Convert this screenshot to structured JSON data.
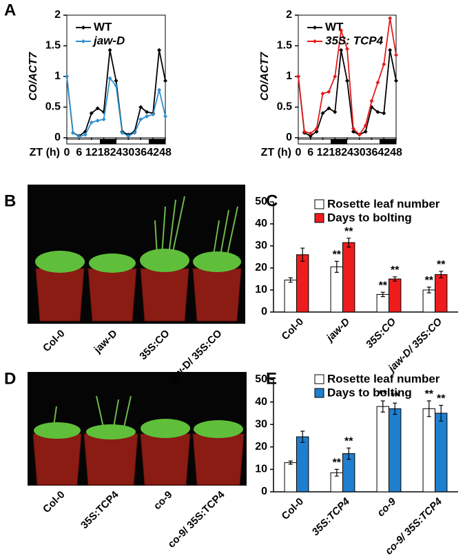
{
  "panels": [
    "A",
    "B",
    "C",
    "D",
    "E"
  ],
  "photo_b": {
    "labels": [
      "Col-0",
      "jaw-D",
      "35S:CO",
      "jaw-D/ 35S:CO"
    ]
  },
  "photo_d": {
    "labels": [
      "Col-0",
      "35S:TCP4",
      "co-9",
      "co-9/ 35S:TCP4"
    ]
  },
  "chart_data": [
    {
      "type": "line",
      "xlabel": "ZT (h)",
      "ylabel": "CO/ACT7",
      "x": [
        0,
        3,
        6,
        9,
        12,
        15,
        18,
        21,
        24,
        27,
        30,
        33,
        36,
        39,
        42,
        45,
        48
      ],
      "xlim": [
        0,
        48
      ],
      "xticks": [
        0,
        6,
        12,
        18,
        24,
        30,
        36,
        42,
        48
      ],
      "ylim": [
        0,
        2
      ],
      "yticks": [
        0,
        0.5,
        1,
        1.5,
        2
      ],
      "series": [
        {
          "name": "WT",
          "color": "#000000",
          "values": [
            1.0,
            0.08,
            0.03,
            0.1,
            0.4,
            0.48,
            0.42,
            1.43,
            0.93,
            0.1,
            0.05,
            0.1,
            0.5,
            0.42,
            0.4,
            1.43,
            0.93
          ]
        },
        {
          "name": "jaw-D",
          "color": "#2e8fcf",
          "values": [
            1.0,
            0.08,
            0.02,
            0.05,
            0.25,
            0.28,
            0.3,
            0.97,
            0.85,
            0.08,
            0.03,
            0.08,
            0.3,
            0.35,
            0.38,
            0.78,
            0.35
          ]
        }
      ]
    },
    {
      "type": "line",
      "xlabel": "ZT (h)",
      "ylabel": "CO/ACT7",
      "x": [
        0,
        3,
        6,
        9,
        12,
        15,
        18,
        21,
        24,
        27,
        30,
        33,
        36,
        39,
        42,
        45,
        48
      ],
      "xlim": [
        0,
        48
      ],
      "xticks": [
        0,
        6,
        12,
        18,
        24,
        30,
        36,
        42,
        48
      ],
      "ylim": [
        0,
        2
      ],
      "yticks": [
        0,
        0.5,
        1,
        1.5,
        2
      ],
      "series": [
        {
          "name": "WT",
          "color": "#000000",
          "values": [
            1.0,
            0.08,
            0.03,
            0.1,
            0.4,
            0.48,
            0.42,
            1.43,
            0.93,
            0.1,
            0.05,
            0.1,
            0.5,
            0.42,
            0.4,
            1.43,
            0.93
          ]
        },
        {
          "name": "35S: TCP4",
          "color": "#e31a1c",
          "values": [
            1.0,
            0.1,
            0.07,
            0.15,
            0.72,
            0.75,
            1.0,
            1.75,
            1.45,
            0.15,
            0.05,
            0.2,
            0.6,
            0.9,
            1.2,
            1.95,
            1.35
          ]
        }
      ]
    },
    {
      "type": "bar",
      "categories": [
        "Col-0",
        "jaw-D",
        "35S:CO",
        "jaw-D/ 35S:CO"
      ],
      "ylim": [
        0,
        50
      ],
      "yticks": [
        0,
        10,
        20,
        30,
        40,
        50
      ],
      "series": [
        {
          "name": "Rosette leaf number",
          "color": "#ffffff",
          "values": [
            14.5,
            20.5,
            8,
            10
          ],
          "errors": [
            1,
            2.5,
            1,
            1.3
          ],
          "significance": [
            null,
            "**",
            "**",
            "**"
          ]
        },
        {
          "name": "Days to bolting",
          "color": "#ee1c1c",
          "values": [
            26,
            31.5,
            15,
            17
          ],
          "errors": [
            3,
            2,
            1,
            1.5
          ],
          "significance": [
            null,
            "**",
            "**",
            "**"
          ]
        }
      ]
    },
    {
      "type": "bar",
      "categories": [
        "Col-0",
        "35S:TCP4",
        "co-9",
        "co-9/ 35S:TCP4"
      ],
      "ylim": [
        0,
        50
      ],
      "yticks": [
        0,
        10,
        20,
        30,
        40,
        50
      ],
      "series": [
        {
          "name": "Rosette leaf number",
          "color": "#ffffff",
          "values": [
            13,
            8.5,
            38,
            37
          ],
          "errors": [
            0.7,
            1.5,
            2.5,
            3.5
          ],
          "significance": [
            null,
            "**",
            "**",
            "**"
          ]
        },
        {
          "name": "Days to bolting",
          "color": "#1f7fcf",
          "values": [
            24.5,
            17,
            37,
            35
          ],
          "errors": [
            2.5,
            2.5,
            2.5,
            3.5
          ],
          "significance": [
            null,
            "**",
            "**",
            "**"
          ]
        }
      ]
    }
  ]
}
